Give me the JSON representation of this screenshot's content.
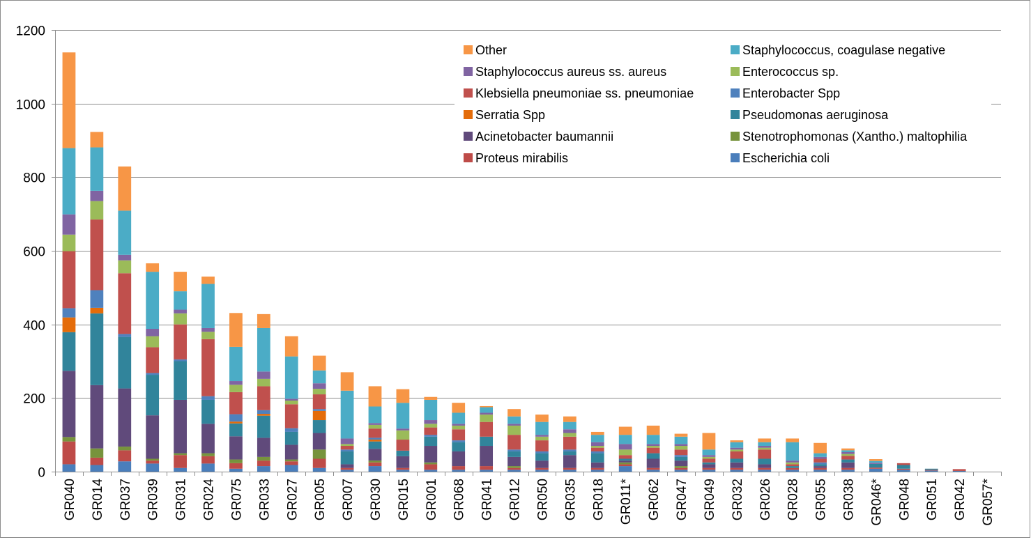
{
  "chart_data": {
    "type": "bar",
    "stacked": true,
    "title": "",
    "xlabel": "",
    "ylabel": "",
    "ylim": [
      0,
      1200
    ],
    "yticks": [
      0,
      200,
      400,
      600,
      800,
      1000,
      1200
    ],
    "grid": true,
    "legend_position": "top-right",
    "categories": [
      "GR040",
      "GR014",
      "GR037",
      "GR039",
      "GR031",
      "GR024",
      "GR075",
      "GR033",
      "GR027",
      "GR005",
      "GR007",
      "GR030",
      "GR015",
      "GR001",
      "GR068",
      "GR041",
      "GR012",
      "GR050",
      "GR035",
      "GR018",
      "GR011*",
      "GR062",
      "GR047",
      "GR049",
      "GR032",
      "GR026",
      "GR028",
      "GR055",
      "GR038",
      "GR046*",
      "GR048",
      "GR051",
      "GR042",
      "GR057*"
    ],
    "series": [
      {
        "name": "Escherichia coli",
        "color": "#4a7ebb",
        "values": [
          20,
          18,
          28,
          22,
          10,
          22,
          8,
          15,
          18,
          10,
          5,
          15,
          5,
          5,
          5,
          5,
          5,
          5,
          5,
          5,
          15,
          5,
          5,
          5,
          5,
          5,
          5,
          5,
          5,
          8,
          5,
          3,
          2,
          0
        ]
      },
      {
        "name": "Proteus mirabilis",
        "color": "#be4b48",
        "values": [
          62,
          20,
          30,
          8,
          35,
          20,
          15,
          15,
          10,
          25,
          5,
          10,
          5,
          15,
          10,
          10,
          5,
          5,
          5,
          5,
          5,
          5,
          5,
          5,
          5,
          5,
          5,
          5,
          5,
          3,
          3,
          2,
          2,
          0
        ]
      },
      {
        "name": "Stenotrophomonas (Xantho.) maltophilia",
        "color": "#77933c",
        "values": [
          12,
          25,
          10,
          5,
          5,
          8,
          10,
          10,
          5,
          25,
          0,
          5,
          0,
          5,
          0,
          0,
          5,
          0,
          0,
          0,
          5,
          0,
          5,
          0,
          0,
          0,
          0,
          0,
          0,
          0,
          0,
          0,
          0,
          0
        ]
      },
      {
        "name": "Acinetobacter baumannii",
        "color": "#604a7b",
        "values": [
          180,
          172,
          158,
          118,
          145,
          80,
          63,
          52,
          40,
          45,
          10,
          32,
          32,
          45,
          40,
          55,
          25,
          20,
          35,
          15,
          5,
          25,
          15,
          10,
          15,
          10,
          0,
          5,
          15,
          0,
          0,
          0,
          0,
          0
        ]
      },
      {
        "name": "Pseudomonas aeruginosa",
        "color": "#31849b",
        "values": [
          105,
          195,
          140,
          110,
          105,
          65,
          35,
          60,
          35,
          35,
          35,
          20,
          15,
          25,
          25,
          25,
          15,
          20,
          10,
          25,
          5,
          15,
          10,
          5,
          10,
          15,
          5,
          5,
          8,
          10,
          10,
          3,
          0,
          0
        ]
      },
      {
        "name": "Serratia Spp",
        "color": "#e46c0a",
        "values": [
          40,
          15,
          0,
          0,
          0,
          0,
          5,
          5,
          0,
          25,
          0,
          5,
          0,
          0,
          0,
          0,
          0,
          0,
          0,
          0,
          0,
          0,
          0,
          0,
          0,
          0,
          0,
          0,
          0,
          0,
          0,
          0,
          0,
          0
        ]
      },
      {
        "name": "Enterobacter Spp",
        "color": "#4f81bd",
        "values": [
          25,
          48,
          8,
          5,
          5,
          10,
          20,
          10,
          10,
          5,
          5,
          5,
          0,
          5,
          5,
          0,
          5,
          5,
          5,
          5,
          0,
          0,
          5,
          0,
          0,
          0,
          0,
          5,
          0,
          0,
          0,
          0,
          0,
          0
        ]
      },
      {
        "name": "Klebsiella pneumoniae ss. pneumoniae",
        "color": "#c0504d",
        "values": [
          155,
          192,
          165,
          70,
          95,
          155,
          60,
          65,
          65,
          40,
          10,
          25,
          30,
          20,
          30,
          40,
          40,
          30,
          35,
          10,
          10,
          15,
          15,
          10,
          20,
          25,
          5,
          10,
          10,
          0,
          5,
          0,
          3,
          0
        ]
      },
      {
        "name": "Enterococcus sp.",
        "color": "#9bbb59",
        "values": [
          45,
          50,
          35,
          30,
          30,
          20,
          20,
          20,
          10,
          15,
          5,
          10,
          25,
          10,
          10,
          20,
          25,
          10,
          10,
          5,
          15,
          5,
          10,
          5,
          5,
          5,
          5,
          0,
          5,
          0,
          0,
          0,
          0,
          0
        ]
      },
      {
        "name": "Staphylococcus aureus ss. aureus",
        "color": "#8064a2",
        "values": [
          55,
          28,
          15,
          20,
          10,
          10,
          10,
          20,
          5,
          15,
          15,
          5,
          5,
          10,
          5,
          5,
          5,
          5,
          10,
          10,
          15,
          5,
          5,
          5,
          5,
          5,
          5,
          5,
          5,
          3,
          0,
          0,
          0,
          0
        ]
      },
      {
        "name": "Staphylococcus, coagulase negative",
        "color": "#4bacc6",
        "values": [
          180,
          118,
          120,
          155,
          50,
          120,
          93,
          118,
          115,
          35,
          130,
          45,
          70,
          55,
          30,
          15,
          20,
          35,
          20,
          20,
          25,
          25,
          20,
          15,
          15,
          10,
          50,
          10,
          5,
          5,
          0,
          0,
          0,
          0
        ]
      },
      {
        "name": "Other",
        "color": "#f79646",
        "values": [
          260,
          42,
          120,
          23,
          53,
          20,
          92,
          38,
          55,
          40,
          50,
          55,
          37,
          8,
          27,
          3,
          20,
          20,
          15,
          8,
          22,
          25,
          8,
          45,
          5,
          10,
          10,
          28,
          5,
          5,
          0,
          0,
          0,
          0
        ]
      }
    ],
    "legend_layout": [
      [
        "Other",
        "Staphylococcus, coagulase negative"
      ],
      [
        "Staphylococcus aureus ss. aureus",
        "Enterococcus sp."
      ],
      [
        "Klebsiella pneumoniae ss. pneumoniae",
        "Enterobacter Spp"
      ],
      [
        "Serratia Spp",
        "Pseudomonas aeruginosa"
      ],
      [
        "Acinetobacter baumannii",
        "Stenotrophomonas (Xantho.) maltophilia"
      ],
      [
        "Proteus mirabilis",
        "Escherichia coli"
      ]
    ]
  }
}
